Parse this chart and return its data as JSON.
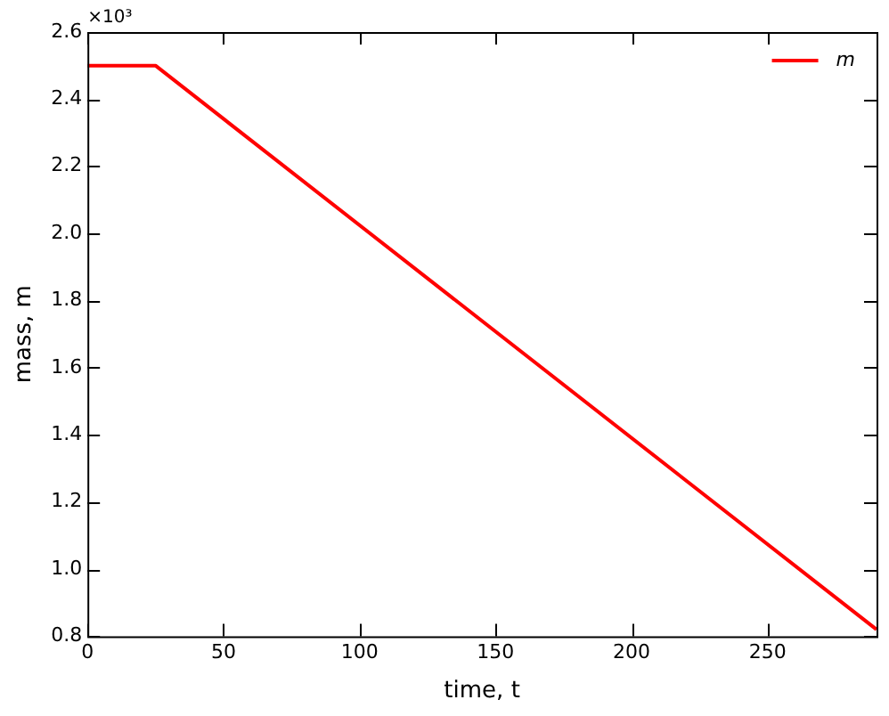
{
  "chart_data": {
    "type": "line",
    "xlabel": "time, t",
    "ylabel": "mass, m",
    "annotations": [
      "×10³"
    ],
    "x": [
      0,
      25,
      290
    ],
    "series": [
      {
        "name": "m",
        "color": "#ff0000",
        "values": [
          2.5,
          2.5,
          0.82
        ]
      }
    ],
    "xlim": [
      0,
      290
    ],
    "xticks": [
      0,
      50,
      100,
      150,
      200,
      250
    ],
    "ylim": [
      0.8,
      2.6
    ],
    "yticks": [
      0.8,
      {
        "value": 1,
        "label": "1.0"
      },
      1.2,
      1.4,
      1.6,
      1.8,
      {
        "value": 2,
        "label": "2.0"
      },
      2.2,
      2.4,
      2.6
    ],
    "grid": false,
    "legend": "top right",
    "marker": "none",
    "line_style": "solid"
  }
}
